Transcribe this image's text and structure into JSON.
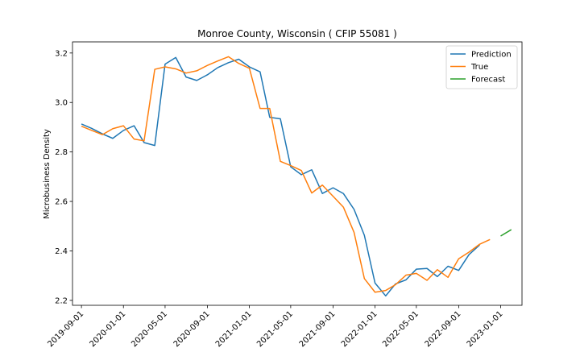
{
  "chart_data": {
    "type": "line",
    "title": "Monroe County, Wisconsin ( CFIP 55081 )",
    "xlabel": "",
    "ylabel": "Microbusiness Density",
    "ylim": [
      2.18,
      3.245
    ],
    "yticks": [
      2.2,
      2.4,
      2.6,
      2.8,
      3.0,
      3.2
    ],
    "ytick_labels": [
      "2.2",
      "2.4",
      "2.6",
      "2.8",
      "3.0",
      "3.2"
    ],
    "xlim": [
      "2019-08-06",
      "2023-03-04"
    ],
    "xticks": [
      "2019-09-01",
      "2020-01-01",
      "2020-05-01",
      "2020-09-01",
      "2021-01-01",
      "2021-05-01",
      "2021-09-01",
      "2022-01-01",
      "2022-05-01",
      "2022-09-01",
      "2023-01-01"
    ],
    "legend_position": "top-right",
    "grid": false,
    "series": [
      {
        "name": "Prediction",
        "color": "#1f77b4",
        "x": [
          "2019-09-01",
          "2019-10-01",
          "2019-11-01",
          "2019-12-01",
          "2020-01-01",
          "2020-02-01",
          "2020-03-01",
          "2020-04-01",
          "2020-05-01",
          "2020-06-01",
          "2020-07-01",
          "2020-08-01",
          "2020-09-01",
          "2020-10-01",
          "2020-11-01",
          "2020-12-01",
          "2021-01-01",
          "2021-02-01",
          "2021-03-01",
          "2021-04-01",
          "2021-05-01",
          "2021-06-01",
          "2021-07-01",
          "2021-08-01",
          "2021-09-01",
          "2021-10-01",
          "2021-11-01",
          "2021-12-01",
          "2022-01-01",
          "2022-02-01",
          "2022-03-01",
          "2022-04-01",
          "2022-05-01",
          "2022-06-01",
          "2022-07-01",
          "2022-08-01",
          "2022-09-01",
          "2022-10-01",
          "2022-11-01"
        ],
        "values": [
          2.913,
          2.895,
          2.873,
          2.855,
          2.887,
          2.906,
          2.838,
          2.826,
          3.155,
          3.182,
          3.103,
          3.089,
          3.112,
          3.141,
          3.161,
          3.175,
          3.144,
          3.124,
          2.94,
          2.934,
          2.74,
          2.708,
          2.728,
          2.632,
          2.655,
          2.632,
          2.568,
          2.463,
          2.27,
          2.218,
          2.266,
          2.283,
          2.326,
          2.329,
          2.296,
          2.338,
          2.321,
          2.385,
          2.424
        ]
      },
      {
        "name": "True",
        "color": "#ff7f0e",
        "x": [
          "2019-09-01",
          "2019-10-01",
          "2019-11-01",
          "2019-12-01",
          "2020-01-01",
          "2020-02-01",
          "2020-03-01",
          "2020-04-01",
          "2020-05-01",
          "2020-06-01",
          "2020-07-01",
          "2020-08-01",
          "2020-09-01",
          "2020-10-01",
          "2020-11-01",
          "2020-12-01",
          "2021-01-01",
          "2021-02-01",
          "2021-03-01",
          "2021-04-01",
          "2021-05-01",
          "2021-06-01",
          "2021-07-01",
          "2021-08-01",
          "2021-09-01",
          "2021-10-01",
          "2021-11-01",
          "2021-12-01",
          "2022-01-01",
          "2022-02-01",
          "2022-03-01",
          "2022-04-01",
          "2022-05-01",
          "2022-06-01",
          "2022-07-01",
          "2022-08-01",
          "2022-09-01",
          "2022-10-01",
          "2022-11-01",
          "2022-12-01"
        ],
        "values": [
          2.904,
          2.887,
          2.87,
          2.894,
          2.906,
          2.852,
          2.845,
          3.134,
          3.144,
          3.136,
          3.119,
          3.128,
          3.15,
          3.168,
          3.185,
          3.158,
          3.138,
          2.976,
          2.976,
          2.762,
          2.745,
          2.725,
          2.634,
          2.666,
          2.621,
          2.577,
          2.475,
          2.288,
          2.233,
          2.24,
          2.263,
          2.302,
          2.309,
          2.281,
          2.324,
          2.293,
          2.368,
          2.395,
          2.427,
          2.446
        ]
      },
      {
        "name": "Forecast",
        "color": "#2ca02c",
        "x": [
          "2023-01-01",
          "2023-02-01"
        ],
        "values": [
          2.46,
          2.486
        ]
      }
    ]
  }
}
